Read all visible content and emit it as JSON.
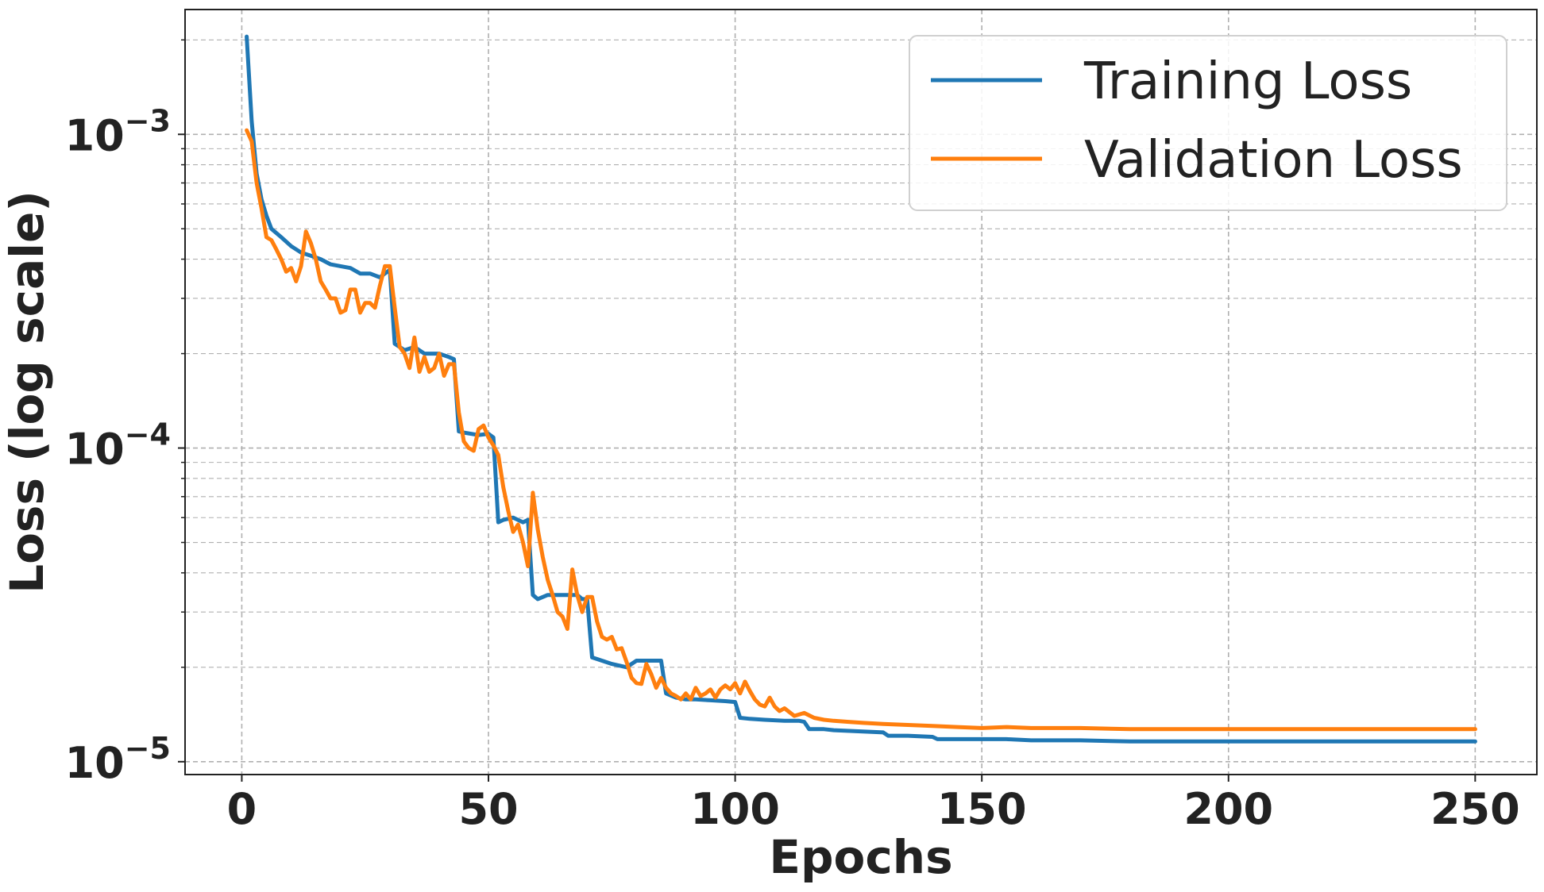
{
  "chart_data": {
    "type": "line",
    "title": "",
    "xlabel": "Epochs",
    "ylabel": "Loss (log scale)",
    "yscale": "log",
    "xlim": [
      -11.5,
      262.5
    ],
    "ylim": [
      9.1e-06,
      0.0025
    ],
    "xticks": [
      0,
      50,
      100,
      150,
      200,
      250
    ],
    "xtick_labels": [
      "0",
      "50",
      "100",
      "150",
      "200",
      "250"
    ],
    "yticks": [
      1e-05,
      0.0001,
      0.001
    ],
    "ytick_labels": [
      {
        "base": "10",
        "exp": "−5"
      },
      {
        "base": "10",
        "exp": "−4"
      },
      {
        "base": "10",
        "exp": "−3"
      }
    ],
    "grid": true,
    "legend_position": "top-right",
    "series": [
      {
        "name": "Training Loss",
        "color": "#1f77b4",
        "x": [
          1,
          2,
          3,
          4,
          5,
          6,
          8,
          10,
          12,
          14,
          16,
          18,
          20,
          22,
          24,
          26,
          28,
          29,
          30,
          31,
          33,
          35,
          37,
          40,
          42,
          43,
          44,
          45,
          48,
          50,
          51,
          52,
          53,
          55,
          57,
          58,
          59,
          60,
          62,
          64,
          66,
          68,
          69,
          70,
          71,
          73,
          75,
          78,
          80,
          82,
          84,
          85,
          86,
          88,
          90,
          92,
          95,
          98,
          100,
          101,
          103,
          106,
          110,
          113,
          114,
          115,
          118,
          120,
          125,
          130,
          131,
          135,
          140,
          141,
          145,
          150,
          155,
          160,
          170,
          180,
          190,
          200,
          210,
          220,
          230,
          240,
          250
        ],
        "y": [
          0.00205,
          0.0011,
          0.00075,
          0.00062,
          0.00055,
          0.0005,
          0.00047,
          0.00044,
          0.00042,
          0.00041,
          0.0004,
          0.000385,
          0.00038,
          0.000375,
          0.00036,
          0.00036,
          0.00035,
          0.00036,
          0.00037,
          0.000215,
          0.000205,
          0.00021,
          0.0002,
          0.0002,
          0.000195,
          0.000192,
          0.000113,
          0.000112,
          0.00011,
          0.000111,
          0.000108,
          5.8e-05,
          5.9e-05,
          6e-05,
          5.8e-05,
          5.9e-05,
          3.4e-05,
          3.3e-05,
          3.4e-05,
          3.4e-05,
          3.4e-05,
          3.4e-05,
          3.3e-05,
          3.3e-05,
          2.15e-05,
          2.1e-05,
          2.05e-05,
          2e-05,
          2.1e-05,
          2.1e-05,
          2.1e-05,
          2.1e-05,
          1.65e-05,
          1.6e-05,
          1.58e-05,
          1.58e-05,
          1.57e-05,
          1.56e-05,
          1.55e-05,
          1.38e-05,
          1.37e-05,
          1.36e-05,
          1.35e-05,
          1.35e-05,
          1.34e-05,
          1.27e-05,
          1.27e-05,
          1.26e-05,
          1.25e-05,
          1.24e-05,
          1.21e-05,
          1.21e-05,
          1.2e-05,
          1.18e-05,
          1.18e-05,
          1.18e-05,
          1.18e-05,
          1.17e-05,
          1.17e-05,
          1.16e-05,
          1.16e-05,
          1.16e-05,
          1.16e-05,
          1.16e-05,
          1.16e-05,
          1.16e-05,
          1.16e-05
        ]
      },
      {
        "name": "Validation Loss",
        "color": "#ff7f0e",
        "x": [
          1,
          2,
          3,
          4,
          5,
          6,
          7,
          8,
          9,
          10,
          11,
          12,
          13,
          14,
          15,
          16,
          17,
          18,
          19,
          20,
          21,
          22,
          23,
          24,
          25,
          26,
          27,
          28,
          29,
          30,
          31,
          32,
          33,
          34,
          35,
          36,
          37,
          38,
          39,
          40,
          41,
          42,
          43,
          44,
          45,
          46,
          47,
          48,
          49,
          50,
          51,
          52,
          53,
          54,
          55,
          56,
          57,
          58,
          59,
          60,
          61,
          62,
          63,
          64,
          65,
          66,
          67,
          68,
          69,
          70,
          71,
          72,
          73,
          74,
          75,
          76,
          77,
          78,
          79,
          80,
          81,
          82,
          83,
          84,
          85,
          86,
          87,
          88,
          89,
          90,
          91,
          92,
          93,
          94,
          95,
          96,
          97,
          98,
          99,
          100,
          101,
          102,
          103,
          104,
          105,
          106,
          107,
          108,
          109,
          110,
          112,
          114,
          116,
          118,
          120,
          123,
          126,
          130,
          135,
          140,
          145,
          150,
          155,
          160,
          170,
          180,
          190,
          200,
          210,
          220,
          230,
          240,
          250
        ],
        "y": [
          0.00103,
          0.00095,
          0.0007,
          0.00058,
          0.00047,
          0.00046,
          0.00043,
          0.0004,
          0.000365,
          0.000375,
          0.00034,
          0.00038,
          0.00049,
          0.00045,
          0.0004,
          0.00034,
          0.00032,
          0.0003,
          0.0003,
          0.00027,
          0.000275,
          0.00032,
          0.00032,
          0.00027,
          0.00029,
          0.00029,
          0.00028,
          0.00033,
          0.00038,
          0.00038,
          0.00028,
          0.00021,
          0.0002,
          0.00018,
          0.000225,
          0.000175,
          0.000195,
          0.000175,
          0.00018,
          0.0002,
          0.00017,
          0.000185,
          0.000185,
          0.00013,
          0.000105,
          0.0001,
          9.8e-05,
          0.000115,
          0.000118,
          0.000108,
          0.000102,
          9.5e-05,
          7.5e-05,
          6.3e-05,
          5.4e-05,
          5.7e-05,
          5e-05,
          4.2e-05,
          7.2e-05,
          5.5e-05,
          4.5e-05,
          3.8e-05,
          3.4e-05,
          3e-05,
          2.9e-05,
          2.65e-05,
          4.1e-05,
          3.4e-05,
          3e-05,
          3.35e-05,
          3.35e-05,
          2.8e-05,
          2.5e-05,
          2.45e-05,
          2.5e-05,
          2.28e-05,
          2.3e-05,
          2.08e-05,
          1.85e-05,
          1.78e-05,
          1.77e-05,
          2.05e-05,
          1.9e-05,
          1.72e-05,
          1.85e-05,
          1.72e-05,
          1.65e-05,
          1.62e-05,
          1.58e-05,
          1.65e-05,
          1.58e-05,
          1.72e-05,
          1.62e-05,
          1.65e-05,
          1.7e-05,
          1.6e-05,
          1.7e-05,
          1.75e-05,
          1.7e-05,
          1.78e-05,
          1.65e-05,
          1.8e-05,
          1.68e-05,
          1.58e-05,
          1.52e-05,
          1.5e-05,
          1.6e-05,
          1.5e-05,
          1.45e-05,
          1.48e-05,
          1.4e-05,
          1.43e-05,
          1.38e-05,
          1.36e-05,
          1.35e-05,
          1.34e-05,
          1.33e-05,
          1.32e-05,
          1.31e-05,
          1.3e-05,
          1.29e-05,
          1.28e-05,
          1.29e-05,
          1.28e-05,
          1.28e-05,
          1.27e-05,
          1.27e-05,
          1.27e-05,
          1.27e-05,
          1.27e-05,
          1.27e-05,
          1.27e-05,
          1.27e-05
        ]
      }
    ]
  }
}
